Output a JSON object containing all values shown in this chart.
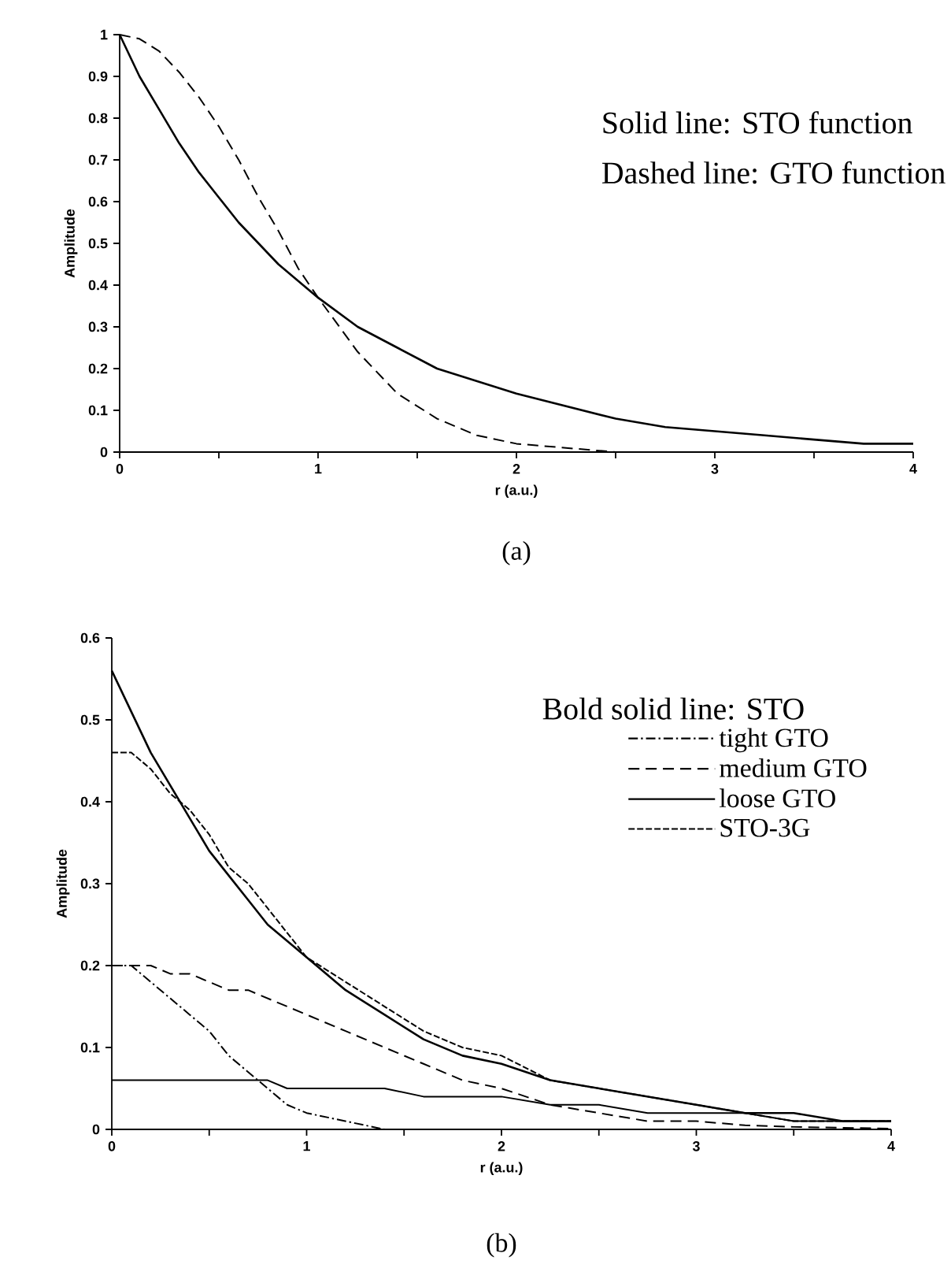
{
  "chart_data": [
    {
      "type": "line",
      "xlabel": "r (a.u.)",
      "ylabel": "Amplitude",
      "annotations": [
        "Solid line: STO function",
        "Dashed line: GTO function",
        "(a)"
      ],
      "x": [
        0,
        0.1,
        0.2,
        0.3,
        0.4,
        0.5,
        0.6,
        0.7,
        0.8,
        0.9,
        1.0,
        1.2,
        1.4,
        1.6,
        1.8,
        2.0,
        2.25,
        2.5,
        2.75,
        3,
        3.25,
        3.5,
        3.75,
        4
      ],
      "series": [
        {
          "color": "#000000",
          "line_style": "solid",
          "values": [
            1,
            0.9,
            0.82,
            0.74,
            0.67,
            0.61,
            0.55,
            0.5,
            0.45,
            0.41,
            0.37,
            0.3,
            0.25,
            0.2,
            0.17,
            0.14,
            0.11,
            0.08,
            0.06,
            0.05,
            0.04,
            0.03,
            0.02,
            0.02
          ]
        },
        {
          "color": "#000000",
          "line_style": "dashed",
          "values": [
            1,
            0.99,
            0.96,
            0.91,
            0.85,
            0.78,
            0.7,
            0.61,
            0.53,
            0.44,
            0.37,
            0.24,
            0.14,
            0.08,
            0.04,
            0.02,
            0.01,
            0,
            0,
            0,
            0,
            0,
            0,
            0
          ]
        }
      ],
      "xlim": [
        0,
        4
      ],
      "ylim": [
        0,
        1
      ],
      "xticks": [
        0,
        {
          "value": 0.5,
          "label": null
        },
        1,
        {
          "value": 1.5,
          "label": null
        },
        2,
        {
          "value": 2.5,
          "label": null
        },
        3,
        {
          "value": 3.5,
          "label": null
        },
        4
      ],
      "yticks": [
        0,
        0.1,
        0.2,
        0.3,
        0.4,
        0.5,
        0.6,
        0.7,
        0.8,
        0.9,
        1
      ],
      "grid": false,
      "legend": false,
      "marker": "none"
    },
    {
      "type": "line",
      "xlabel": "r (a.u.)",
      "ylabel": "Amplitude",
      "legend_title": "Bold solid line: STO",
      "annotations": [
        "(b)"
      ],
      "x": [
        0,
        0.1,
        0.2,
        0.3,
        0.4,
        0.5,
        0.6,
        0.7,
        0.8,
        0.9,
        1.0,
        1.2,
        1.4,
        1.6,
        1.8,
        2.0,
        2.25,
        2.5,
        2.75,
        3,
        3.25,
        3.5,
        3.75,
        4
      ],
      "series": [
        {
          "color": "#000000",
          "line_style": "solid",
          "values": [
            0.56,
            0.51,
            0.46,
            0.42,
            0.38,
            0.34,
            0.31,
            0.28,
            0.25,
            0.23,
            0.21,
            0.17,
            0.14,
            0.11,
            0.09,
            0.08,
            0.06,
            0.05,
            0.04,
            0.03,
            0.02,
            0.02,
            0.01,
            0.01
          ]
        },
        {
          "name": "tight GTO",
          "color": "#000000",
          "line_style": "dashdot",
          "values": [
            0.2,
            0.2,
            0.18,
            0.16,
            0.14,
            0.12,
            0.09,
            0.07,
            0.05,
            0.03,
            0.02,
            0.01,
            0,
            0,
            0,
            0,
            null,
            null,
            null,
            null,
            null,
            null,
            null,
            null
          ]
        },
        {
          "name": "medium GTO",
          "color": "#000000",
          "line_style": "dashed",
          "values": [
            0.2,
            0.2,
            0.2,
            0.19,
            0.19,
            0.18,
            0.17,
            0.17,
            0.16,
            0.15,
            0.14,
            0.12,
            0.1,
            0.08,
            0.06,
            0.05,
            0.03,
            0.02,
            0.01,
            0.01,
            0.005,
            0.003,
            0.002,
            0.001
          ]
        },
        {
          "name": "loose GTO",
          "color": "#000000",
          "line_style": "solid",
          "values": [
            0.06,
            0.06,
            0.06,
            0.06,
            0.06,
            0.06,
            0.06,
            0.06,
            0.06,
            0.05,
            0.05,
            0.05,
            0.05,
            0.04,
            0.04,
            0.04,
            0.03,
            0.03,
            0.02,
            0.02,
            0.02,
            0.01,
            0.01,
            0.01
          ]
        },
        {
          "name": "STO-3G",
          "color": "#000000",
          "line_style": "shortdashed",
          "values": [
            0.46,
            0.46,
            0.44,
            0.41,
            0.39,
            0.36,
            0.32,
            0.3,
            0.27,
            0.24,
            0.21,
            0.18,
            0.15,
            0.12,
            0.1,
            0.09,
            0.06,
            0.05,
            0.04,
            0.03,
            0.02,
            0.01,
            0.01,
            0.01
          ]
        }
      ],
      "xlim": [
        0,
        4
      ],
      "ylim": [
        0,
        0.6
      ],
      "xticks": [
        0,
        {
          "value": 0.5,
          "label": null
        },
        1,
        {
          "value": 1.5,
          "label": null
        },
        2,
        {
          "value": 2.5,
          "label": null
        },
        3,
        {
          "value": 3.5,
          "label": null
        },
        4
      ],
      "yticks": [
        0,
        0.1,
        0.2,
        0.3,
        0.4,
        0.5,
        0.6
      ],
      "grid": false,
      "legend": "top right",
      "marker": "none"
    }
  ]
}
